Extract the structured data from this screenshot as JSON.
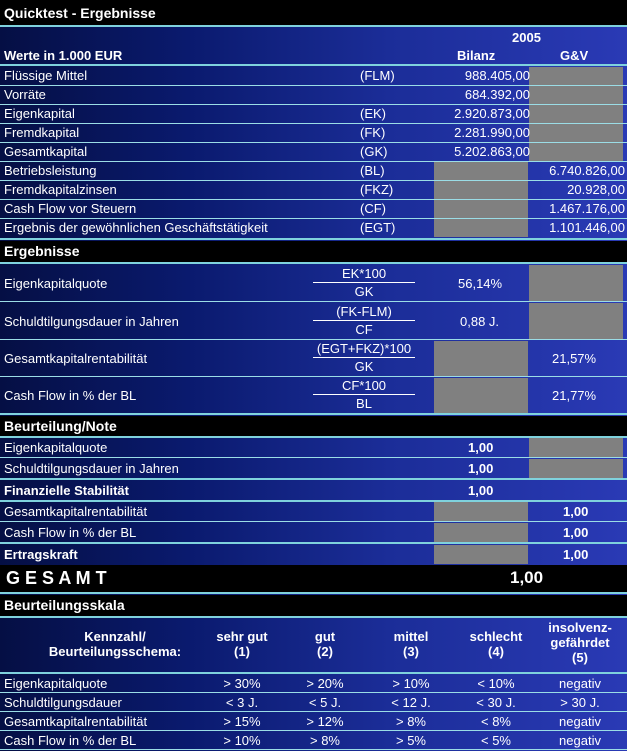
{
  "title": "Quicktest - Ergebnisse",
  "header": {
    "units_label": "Werte in 1.000 EUR",
    "year": "2005",
    "col_bilanz": "Bilanz",
    "col_guv": "G&V"
  },
  "balance_rows": [
    {
      "label": "Flüssige Mittel",
      "code": "(FLM)",
      "bilanz": "988.405,00",
      "guv": ""
    },
    {
      "label": "Vorräte",
      "code": "",
      "bilanz": "684.392,00",
      "guv": ""
    },
    {
      "label": "Eigenkapital",
      "code": "(EK)",
      "bilanz": "2.920.873,00",
      "guv": ""
    },
    {
      "label": "Fremdkapital",
      "code": "(FK)",
      "bilanz": "2.281.990,00",
      "guv": ""
    },
    {
      "label": "Gesamtkapital",
      "code": "(GK)",
      "bilanz": "5.202.863,00",
      "guv": ""
    },
    {
      "label": "Betriebsleistung",
      "code": "(BL)",
      "bilanz": "",
      "guv": "6.740.826,00"
    },
    {
      "label": "Fremdkapitalzinsen",
      "code": "(FKZ)",
      "bilanz": "",
      "guv": "20.928,00"
    },
    {
      "label": "Cash Flow vor Steuern",
      "code": "(CF)",
      "bilanz": "",
      "guv": "1.467.176,00"
    },
    {
      "label": "Ergebnis der gewöhnlichen Geschäftstätigkeit",
      "code": "(EGT)",
      "bilanz": "",
      "guv": "1.101.446,00"
    }
  ],
  "results": {
    "title": "Ergebnisse",
    "rows": [
      {
        "label": "Eigenkapitalquote",
        "num": "EK*100",
        "den": "GK",
        "bilanz": "56,14%",
        "guv": ""
      },
      {
        "label": "Schuldtilgungsdauer in Jahren",
        "num": "(FK-FLM)",
        "den": "CF",
        "bilanz": "0,88 J.",
        "guv": ""
      },
      {
        "label": "Gesamtkapitalrentabilität",
        "num": "(EGT+FKZ)*100",
        "den": "GK",
        "bilanz": "",
        "guv": "21,57%"
      },
      {
        "label": "Cash Flow in % der BL",
        "num": "CF*100",
        "den": "BL",
        "bilanz": "",
        "guv": "21,77%"
      }
    ]
  },
  "rating": {
    "title": "Beurteilung/Note",
    "rows": [
      {
        "label": "Eigenkapitalquote",
        "bilanz": "1,00",
        "guv": ""
      },
      {
        "label": "Schuldtilgungsdauer in Jahren",
        "bilanz": "1,00",
        "guv": ""
      },
      {
        "label": "Finanzielle Stabilität",
        "bilanz": "1,00",
        "guv": ""
      },
      {
        "label": "Gesamtkapitalrentabilität",
        "bilanz": "",
        "guv": "1,00"
      },
      {
        "label": "Cash Flow in % der BL",
        "bilanz": "",
        "guv": "1,00"
      },
      {
        "label": "Ertragskraft",
        "bilanz": "",
        "guv": "1,00"
      }
    ]
  },
  "total": {
    "label": "G E S A M T",
    "value": "1,00"
  },
  "scale": {
    "title": "Beurteilungsskala",
    "head": {
      "col0": [
        "Kennzahl/",
        "Beurteilungsschema:"
      ],
      "cols": [
        [
          "sehr gut",
          "(1)"
        ],
        [
          "gut",
          "(2)"
        ],
        [
          "mittel",
          "(3)"
        ],
        [
          "schlecht",
          "(4)"
        ],
        [
          "insolvenz-",
          "gefährdet",
          "(5)"
        ]
      ]
    },
    "rows": [
      {
        "label": "Eigenkapitalquote",
        "values": [
          "> 30%",
          "> 20%",
          "> 10%",
          "< 10%",
          "negativ"
        ]
      },
      {
        "label": "Schuldtilgungsdauer",
        "values": [
          "< 3 J.",
          "< 5 J.",
          "< 12 J.",
          "< 30 J.",
          "> 30 J."
        ]
      },
      {
        "label": "Gesamtkapitalrentabilität",
        "values": [
          "> 15%",
          "> 12%",
          "> 8%",
          "< 8%",
          "negativ"
        ]
      },
      {
        "label": "Cash Flow in % der BL",
        "values": [
          "> 10%",
          "> 8%",
          "> 5%",
          "< 5%",
          "negativ"
        ]
      }
    ]
  }
}
